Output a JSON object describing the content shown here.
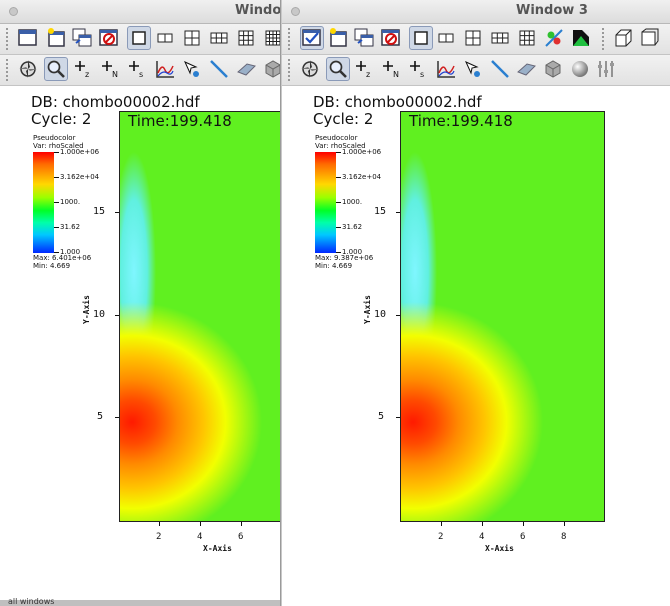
{
  "windows": [
    {
      "title": "Windo",
      "db": "DB: chombo00002.hdf",
      "cycle": "Cycle: 2",
      "time": "Time:199.418",
      "legend": {
        "title": "Pseudocolor",
        "var": "Var: rhoScaled",
        "labels": [
          "1.000e+06",
          "3.162e+04",
          "1000.",
          "31.62",
          "1.000"
        ],
        "max": "Max: 6.401e+06",
        "min": "Min: 4.669"
      },
      "y_ticks": [
        "15",
        "10",
        "5"
      ],
      "x_ticks": [
        "2",
        "4",
        "6"
      ],
      "x_label": "X-Axis",
      "y_label": "Y-Axis"
    },
    {
      "title": "Window 3",
      "db": "DB: chombo00002.hdf",
      "cycle": "Cycle: 2",
      "time": "Time:199.418",
      "legend": {
        "title": "Pseudocolor",
        "var": "Var: rhoScaled",
        "labels": [
          "1.000e+06",
          "3.162e+04",
          "1000.",
          "31.62",
          "1.000"
        ],
        "max": "Max: 9.387e+06",
        "min": "Min: 4.669"
      },
      "y_ticks": [
        "15",
        "10",
        "5"
      ],
      "x_ticks": [
        "2",
        "4",
        "6",
        "8"
      ],
      "x_label": "X-Axis",
      "y_label": "Y-Axis"
    }
  ],
  "toolbar_icons": {
    "row1": [
      "new-window-icon",
      "clone-window-icon",
      "copy-window-icon",
      "delete-window-icon",
      "layout-1x1-icon",
      "layout-1x2-icon",
      "layout-2x2-icon",
      "layout-2x3-icon",
      "layout-3x3-icon",
      "lock-icon",
      "spin-icon",
      "3d-view-icon"
    ],
    "row2": [
      "navigate-icon",
      "zoom-icon",
      "zone-pick-icon",
      "node-pick-icon",
      "spreadsheet-pick-icon",
      "lineout-icon",
      "point-tool-icon",
      "line-tool-icon",
      "plane-tool-icon",
      "box-tool-icon",
      "sphere-tool-icon",
      "axis-restrict-icon"
    ]
  },
  "bottom_text": "all windows"
}
